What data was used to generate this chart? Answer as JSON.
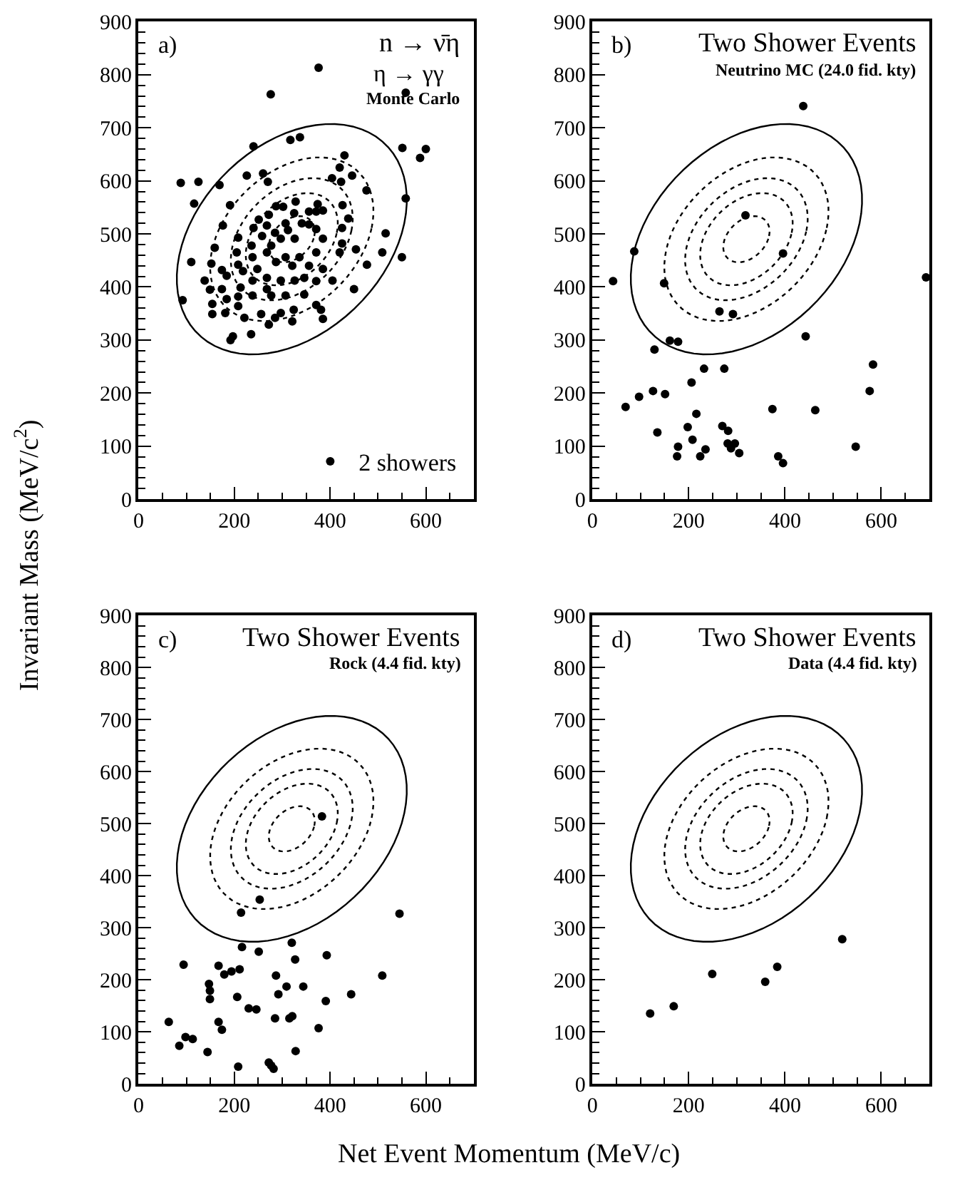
{
  "chart_data": [
    {
      "type": "scatter",
      "title": "n → ν̄η",
      "subtitle": "Monte Carlo",
      "annotations": [
        "a)",
        "η → γγ"
      ],
      "legend": "bottom right",
      "marker": "circle",
      "xlim": [
        0,
        700
      ],
      "xticks": [
        0,
        200,
        400,
        600
      ],
      "ylim": [
        0,
        900
      ],
      "yticks": [
        0,
        100,
        200,
        300,
        400,
        500,
        600,
        700,
        800,
        900
      ],
      "series": [
        {
          "name": "2 showers",
          "color": "#000000",
          "x": [
            376,
            276,
            558,
            317,
            337,
            240,
            551,
            600,
            588,
            88,
            125,
            169,
            430,
            420,
            446,
            404,
            423,
            476,
            558,
            226,
            260,
            270,
            116,
            191,
            328,
            374,
            385,
            426,
            438,
            176,
            240,
            287,
            302,
            272,
            251,
            268,
            307,
            325,
            356,
            371,
            341,
            356,
            285,
            297,
            277,
            258,
            312,
            326,
            371,
            385,
            425,
            425,
            208,
            159,
            110,
            152,
            205,
            238,
            268,
            287,
            307,
            321,
            336,
            356,
            371,
            385,
            420,
            454,
            509,
            516,
            477,
            550,
            138,
            174,
            184,
            218,
            248,
            238,
            268,
            297,
            326,
            346,
            371,
            405,
            174,
            213,
            268,
            154,
            184,
            208,
            238,
            277,
            307,
            346,
            92,
            154,
            181,
            208,
            221,
            256,
            272,
            285,
            297,
            324,
            371,
            381,
            385,
            450,
            235,
            192,
            197,
            321,
            208,
            149,
            236
          ],
          "values": [
            813,
            763,
            766,
            677,
            682,
            665,
            662,
            660,
            643,
            596,
            598,
            592,
            648,
            625,
            610,
            605,
            598,
            582,
            567,
            610,
            614,
            598,
            557,
            554,
            561,
            556,
            544,
            554,
            529,
            516,
            511,
            552,
            551,
            536,
            527,
            516,
            520,
            539,
            542,
            542,
            520,
            518,
            502,
            491,
            478,
            496,
            507,
            491,
            509,
            491,
            511,
            482,
            493,
            474,
            447,
            444,
            465,
            456,
            465,
            447,
            456,
            440,
            456,
            440,
            465,
            434,
            465,
            471,
            465,
            501,
            442,
            456,
            412,
            432,
            421,
            430,
            434,
            412,
            417,
            412,
            412,
            417,
            411,
            412,
            396,
            399,
            396,
            368,
            377,
            382,
            384,
            384,
            384,
            386,
            375,
            349,
            351,
            364,
            342,
            349,
            329,
            342,
            351,
            357,
            366,
            357,
            340,
            396,
            311,
            300,
            307,
            335,
            442,
            395,
            478
          ]
        }
      ]
    },
    {
      "type": "scatter",
      "title": "Two Shower Events",
      "subtitle": "Neutrino MC (24.0 fid. kty)",
      "annotations": [
        "b)"
      ],
      "marker": "circle",
      "xlim": [
        0,
        700
      ],
      "xticks": [
        0,
        200,
        400,
        600
      ],
      "ylim": [
        0,
        900
      ],
      "yticks": [
        0,
        100,
        200,
        300,
        400,
        500,
        600,
        700,
        800,
        900
      ],
      "series": [
        {
          "color": "#000000",
          "x": [
            438,
            318,
            396,
            87,
            43,
            149,
            693,
            264,
            292,
            443,
            129,
            161,
            178,
            232,
            274,
            206,
            69,
            97,
            126,
            151,
            374,
            463,
            583,
            576,
            216,
            135,
            198,
            208,
            178,
            176,
            235,
            224,
            270,
            282,
            281,
            296,
            288,
            305,
            547,
            386,
            396
          ],
          "values": [
            741,
            535,
            463,
            467,
            411,
            407,
            418,
            354,
            349,
            307,
            282,
            299,
            297,
            246,
            246,
            220,
            174,
            193,
            204,
            198,
            170,
            168,
            254,
            204,
            161,
            126,
            136,
            112,
            99,
            81,
            94,
            81,
            138,
            129,
            105,
            105,
            96,
            87,
            99,
            81,
            68
          ]
        }
      ]
    },
    {
      "type": "scatter",
      "title": "Two Shower Events",
      "subtitle": "Rock (4.4 fid. kty)",
      "annotations": [
        "c)"
      ],
      "xlabel": "Net Event Momentum (MeV/c)",
      "ylabel": "Invariant Mass (MeV/c$^{2}$)",
      "marker": "circle",
      "xlim": [
        0,
        700
      ],
      "xticks": [
        0,
        200,
        400,
        600
      ],
      "ylim": [
        0,
        900
      ],
      "yticks": [
        0,
        100,
        200,
        300,
        400,
        500,
        600,
        700,
        800,
        900
      ],
      "series": [
        {
          "color": "#000000",
          "x": [
            383,
            253,
            214,
            545,
            216,
            251,
            320,
            327,
            393,
            94,
            167,
            179,
            194,
            211,
            147,
            287,
            309,
            344,
            292,
            509,
            444,
            149,
            149,
            206,
            230,
            246,
            285,
            315,
            321,
            391,
            63,
            167,
            174,
            376,
            98,
            113,
            85,
            144,
            328,
            208,
            272,
            277,
            282
          ],
          "values": [
            514,
            354,
            329,
            327,
            263,
            254,
            271,
            239,
            247,
            229,
            227,
            210,
            216,
            220,
            192,
            208,
            187,
            187,
            172,
            208,
            172,
            179,
            163,
            167,
            145,
            143,
            126,
            126,
            130,
            159,
            119,
            119,
            104,
            107,
            90,
            86,
            73,
            61,
            63,
            33,
            41,
            35,
            29
          ]
        }
      ]
    },
    {
      "type": "scatter",
      "title": "Two Shower Events",
      "subtitle": "Data (4.4 fid. kty)",
      "annotations": [
        "d)"
      ],
      "marker": "circle",
      "xlim": [
        0,
        700
      ],
      "xticks": [
        0,
        200,
        400,
        600
      ],
      "ylim": [
        0,
        900
      ],
      "yticks": [
        0,
        100,
        200,
        300,
        400,
        500,
        600,
        700,
        800,
        900
      ],
      "series": [
        {
          "color": "#000000",
          "x": [
            120,
            169,
            249,
            359,
            384,
            519
          ],
          "values": [
            135,
            149,
            211,
            196,
            225,
            278
          ]
        }
      ]
    }
  ]
}
